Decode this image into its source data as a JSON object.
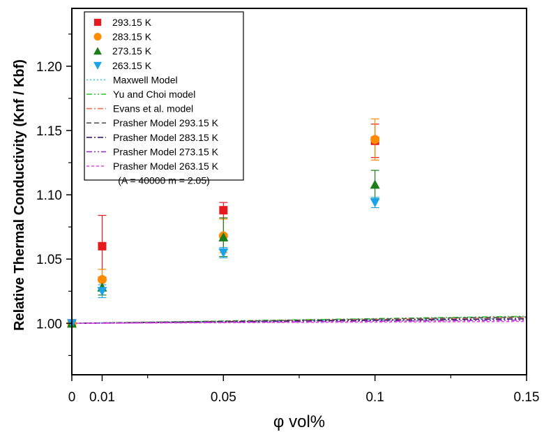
{
  "chart_data": {
    "type": "scatter",
    "xlabel": "φ vol%",
    "ylabel": "Relative Thermal Conductivity (Knf / Kbf)",
    "xlim": [
      0,
      0.15
    ],
    "ylim": [
      0.96,
      1.245
    ],
    "xticks": [
      0,
      0.01,
      0.05,
      0.1,
      0.15
    ],
    "xtick_labels": [
      "0",
      "0.01",
      "0.05",
      "0.1",
      "0.15"
    ],
    "yticks": [
      1.0,
      1.05,
      1.1,
      1.15,
      1.2
    ],
    "ytick_labels": [
      "1.00",
      "1.05",
      "1.10",
      "1.15",
      "1.20"
    ],
    "grid": false,
    "legend_position": "top-left",
    "legend_note": "(A = 40000  m = 2.05)",
    "series": [
      {
        "name": "293.15 K",
        "marker": "square",
        "color": "#e41a1c",
        "points": [
          {
            "x": 0,
            "y": 1.0,
            "err": 0
          },
          {
            "x": 0.01,
            "y": 1.06,
            "err": 0.024
          },
          {
            "x": 0.05,
            "y": 1.088,
            "err": 0.006
          },
          {
            "x": 0.1,
            "y": 1.142,
            "err": 0.013
          }
        ]
      },
      {
        "name": "283.15 K",
        "marker": "circle",
        "color": "#ff8c00",
        "points": [
          {
            "x": 0,
            "y": 1.0,
            "err": 0
          },
          {
            "x": 0.01,
            "y": 1.034,
            "err": 0.008
          },
          {
            "x": 0.05,
            "y": 1.068,
            "err": 0.013
          },
          {
            "x": 0.1,
            "y": 1.143,
            "err": 0.016
          }
        ]
      },
      {
        "name": "273.15 K",
        "marker": "triangle-up",
        "color": "#1a7f1a",
        "points": [
          {
            "x": 0,
            "y": 1.0,
            "err": 0
          },
          {
            "x": 0.01,
            "y": 1.028,
            "err": 0.006
          },
          {
            "x": 0.05,
            "y": 1.067,
            "err": 0.015
          },
          {
            "x": 0.1,
            "y": 1.108,
            "err": 0.011
          }
        ]
      },
      {
        "name": "263.15 K",
        "marker": "triangle-down",
        "color": "#1aa3e8",
        "points": [
          {
            "x": 0,
            "y": 1.0,
            "err": 0
          },
          {
            "x": 0.01,
            "y": 1.025,
            "err": 0.005
          },
          {
            "x": 0.05,
            "y": 1.055,
            "err": 0.004
          },
          {
            "x": 0.1,
            "y": 1.094,
            "err": 0.004
          }
        ]
      },
      {
        "name": "Maxwell Model",
        "line": "dotted",
        "color": "#33ccee",
        "x": [
          0,
          0.15
        ],
        "y": [
          1.0,
          1.004
        ]
      },
      {
        "name": "Yu and Choi model",
        "line": "dash-dot-dot",
        "color": "#22cc22",
        "x": [
          0,
          0.15
        ],
        "y": [
          1.0,
          1.0055
        ]
      },
      {
        "name": "Evans et al. model",
        "line": "dash-dot",
        "color": "#f07050",
        "x": [
          0,
          0.15
        ],
        "y": [
          1.0,
          1.0045
        ]
      },
      {
        "name": "Prasher Model  293.15 K",
        "line": "dashed",
        "color": "#555555",
        "x": [
          0,
          0.15
        ],
        "y": [
          1.0,
          1.005
        ]
      },
      {
        "name": "Prasher Model  283.15 K",
        "line": "dash-dot",
        "color": "#3a1a6e",
        "x": [
          0,
          0.15
        ],
        "y": [
          1.0,
          1.0035
        ]
      },
      {
        "name": "Prasher Model  273.15 K",
        "line": "dash-dot-dot",
        "color": "#9933cc",
        "x": [
          0,
          0.15
        ],
        "y": [
          1.0,
          1.0025
        ]
      },
      {
        "name": "Prasher Model  263.15 K",
        "line": "short-dash",
        "color": "#ee44ee",
        "x": [
          0,
          0.15
        ],
        "y": [
          1.0,
          1.0015
        ]
      }
    ]
  }
}
